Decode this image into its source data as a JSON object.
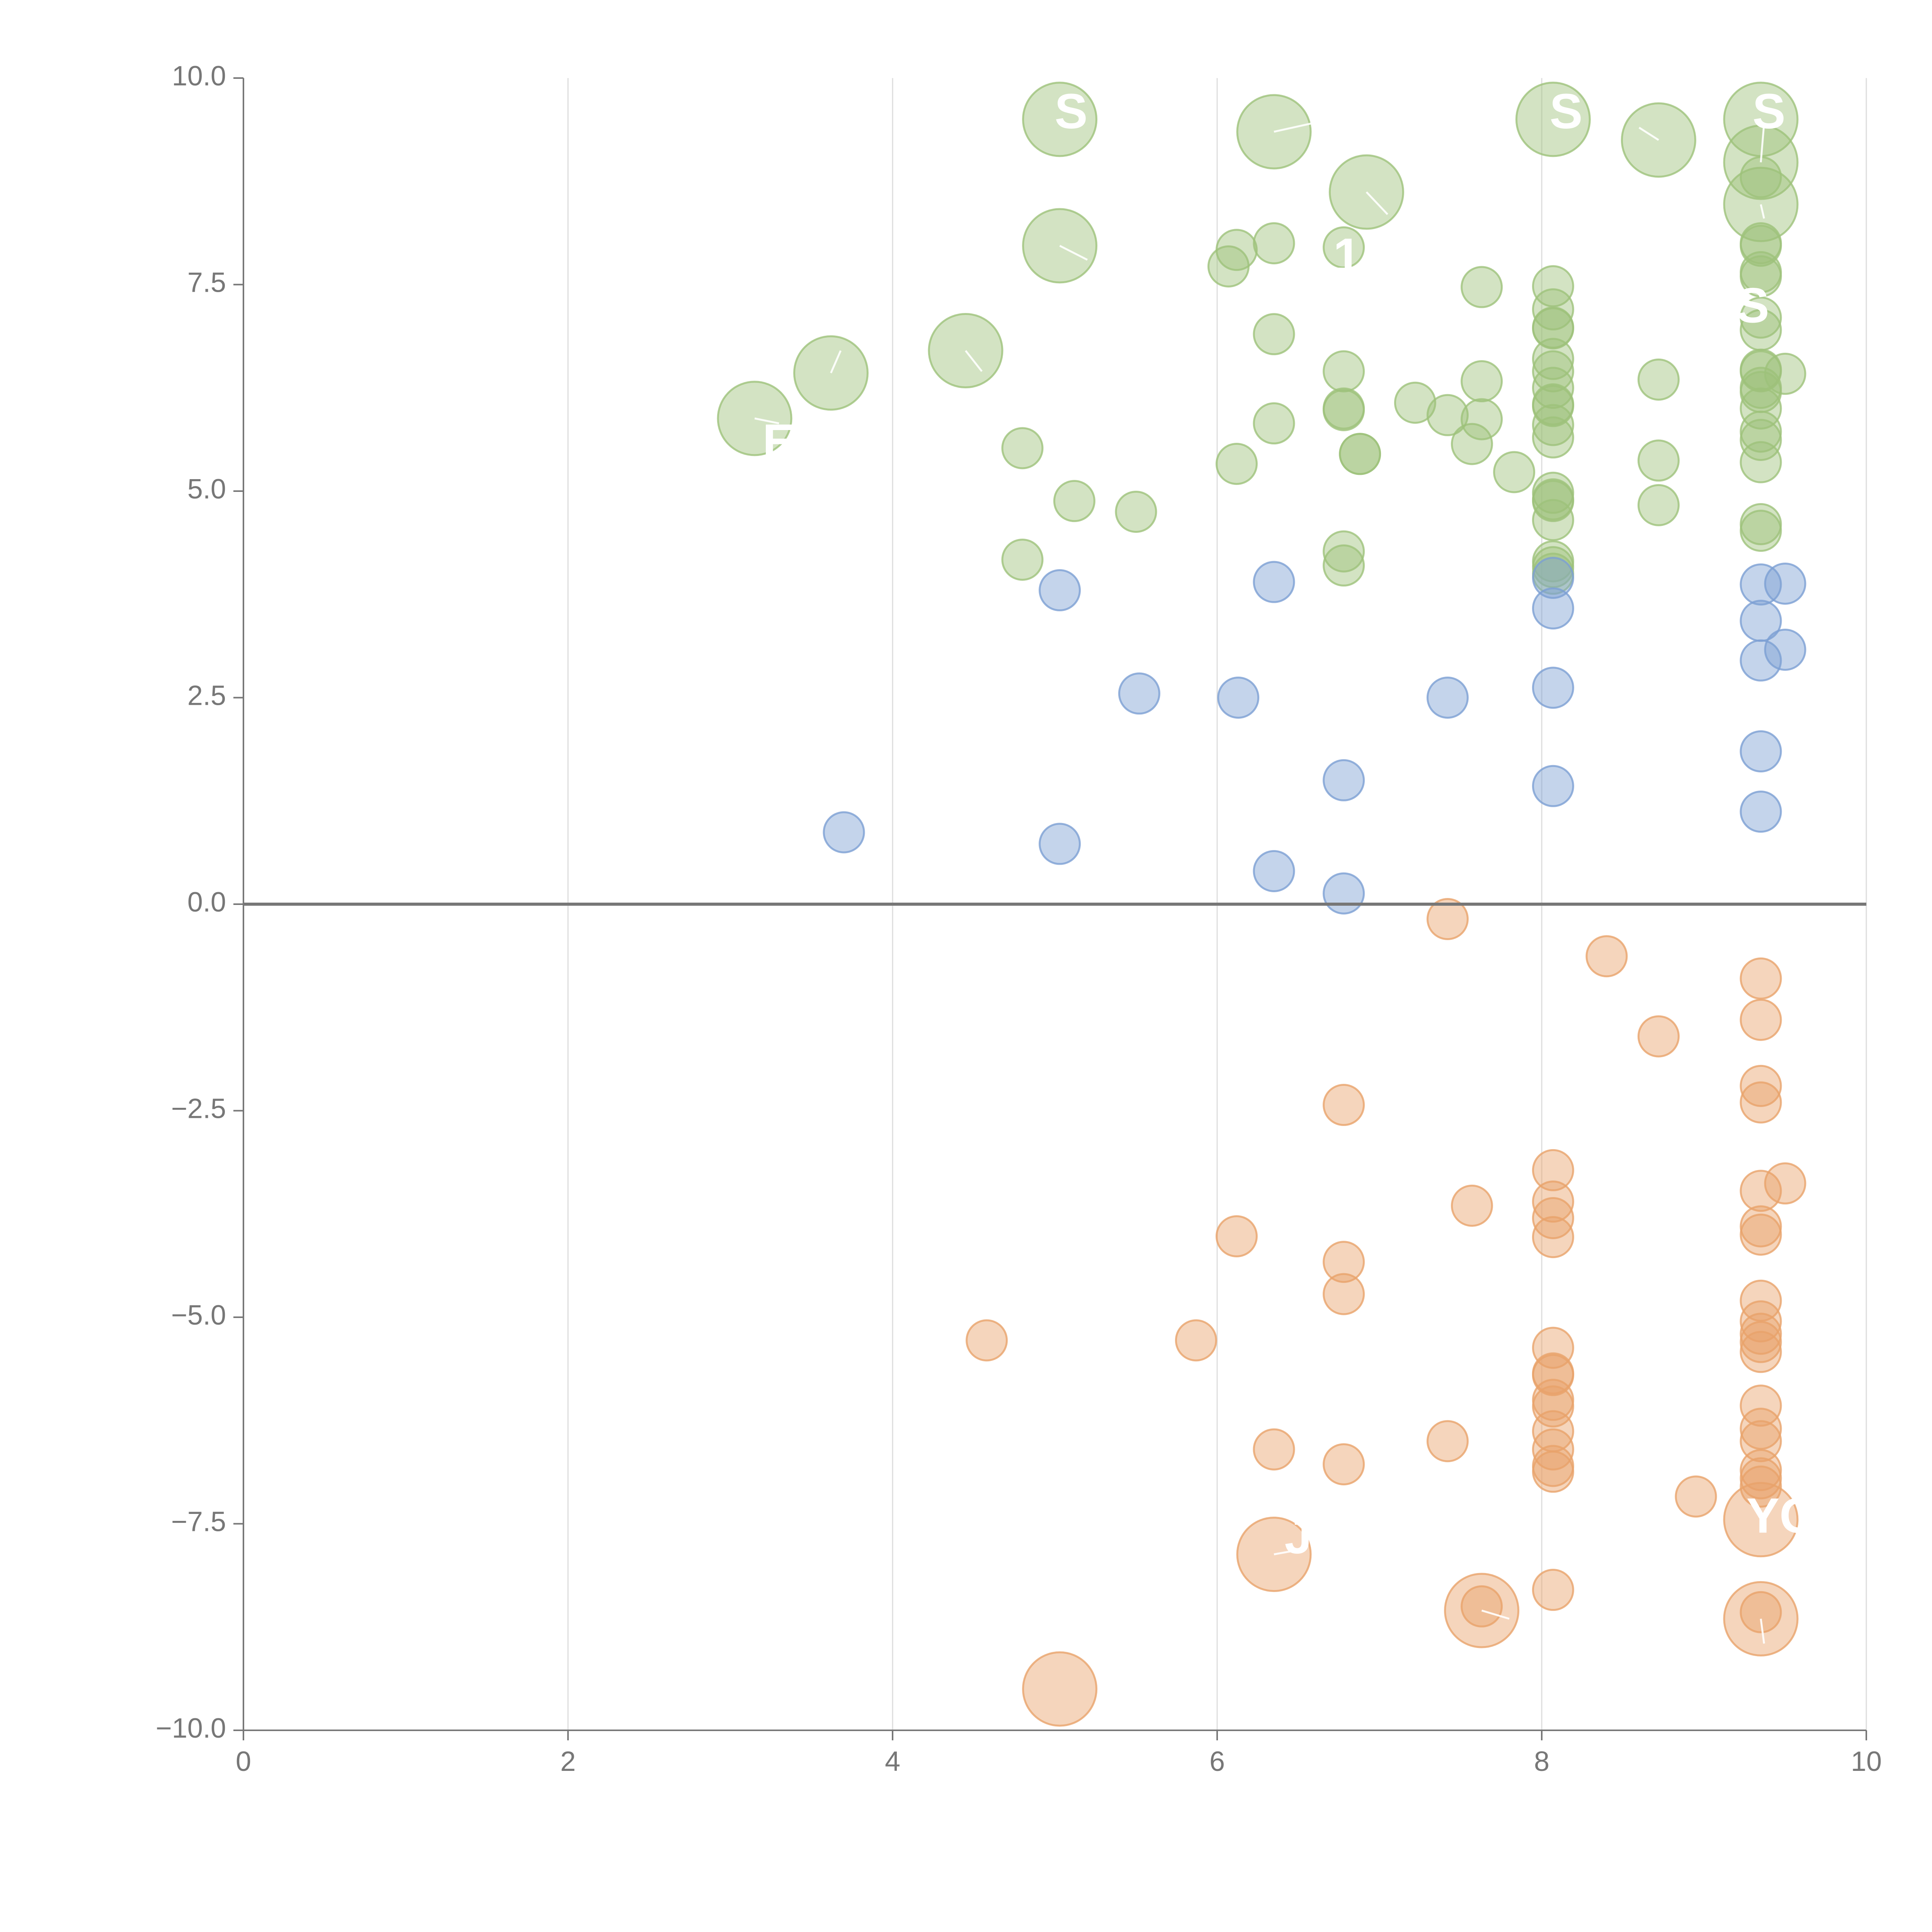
{
  "chart_data": {
    "type": "scatter",
    "title": "",
    "xlabel": "",
    "ylabel": "",
    "xlim": [
      0,
      10
    ],
    "ylim": [
      -10,
      10
    ],
    "x_ticks": [
      "0",
      "2",
      "4",
      "6",
      "8",
      "10"
    ],
    "y_ticks": [
      "10.0",
      "7.5",
      "5.0",
      "2.5",
      "0.0",
      "−2.5",
      "−5.0",
      "−7.5",
      "−10.0"
    ],
    "colors": {
      "green": "#9dc27a",
      "blue": "#7c9fd3",
      "orange": "#e8a26a"
    },
    "series": [
      {
        "name": "green",
        "points": [
          [
            3.15,
            5.88,
            2
          ],
          [
            3.62,
            6.43,
            2
          ],
          [
            4.45,
            6.7,
            2
          ],
          [
            5.03,
            9.5,
            2
          ],
          [
            5.03,
            7.97,
            2
          ],
          [
            6.35,
            9.35,
            2
          ],
          [
            6.92,
            8.62,
            2
          ],
          [
            8.07,
            9.5,
            2
          ],
          [
            8.72,
            9.25,
            2
          ],
          [
            9.35,
            9.5,
            2
          ],
          [
            9.35,
            8.98,
            2
          ],
          [
            9.35,
            8.47,
            2
          ],
          [
            4.8,
            5.52,
            1
          ],
          [
            4.8,
            4.17,
            1
          ],
          [
            5.12,
            4.88,
            1
          ],
          [
            5.5,
            4.75,
            1
          ],
          [
            6.07,
            7.72,
            1
          ],
          [
            6.12,
            7.92,
            1
          ],
          [
            6.12,
            5.33,
            1
          ],
          [
            6.35,
            8.0,
            1
          ],
          [
            6.35,
            6.9,
            1
          ],
          [
            6.35,
            5.82,
            1
          ],
          [
            6.78,
            7.95,
            1
          ],
          [
            6.78,
            6.45,
            1
          ],
          [
            6.78,
            6.0,
            1
          ],
          [
            6.78,
            5.98,
            1
          ],
          [
            6.78,
            4.27,
            1
          ],
          [
            6.78,
            4.1,
            1
          ],
          [
            6.88,
            5.45,
            1
          ],
          [
            6.88,
            5.45,
            1
          ],
          [
            7.22,
            6.07,
            1
          ],
          [
            7.42,
            5.92,
            1
          ],
          [
            7.57,
            5.57,
            1
          ],
          [
            7.63,
            6.33,
            1
          ],
          [
            7.63,
            5.87,
            1
          ],
          [
            7.63,
            7.47,
            1
          ],
          [
            7.83,
            5.23,
            1
          ],
          [
            8.07,
            7.48,
            1
          ],
          [
            8.07,
            7.2,
            1
          ],
          [
            8.07,
            6.98,
            1
          ],
          [
            8.07,
            6.97,
            1
          ],
          [
            8.07,
            6.6,
            1
          ],
          [
            8.07,
            6.45,
            1
          ],
          [
            8.07,
            6.25,
            1
          ],
          [
            8.07,
            6.05,
            1
          ],
          [
            8.07,
            6.03,
            1
          ],
          [
            8.07,
            5.8,
            1
          ],
          [
            8.07,
            5.65,
            1
          ],
          [
            8.07,
            4.98,
            1
          ],
          [
            8.07,
            4.9,
            1
          ],
          [
            8.07,
            4.88,
            1
          ],
          [
            8.07,
            4.65,
            1
          ],
          [
            8.07,
            4.15,
            1
          ],
          [
            8.07,
            4.08,
            1
          ],
          [
            8.07,
            4.0,
            1
          ],
          [
            8.72,
            6.35,
            1
          ],
          [
            8.72,
            5.37,
            1
          ],
          [
            8.72,
            4.83,
            1
          ],
          [
            9.35,
            8.8,
            1
          ],
          [
            9.35,
            8.0,
            1
          ],
          [
            9.35,
            7.97,
            1
          ],
          [
            9.35,
            7.65,
            1
          ],
          [
            9.35,
            7.6,
            1
          ],
          [
            9.35,
            7.1,
            1
          ],
          [
            9.35,
            6.95,
            1
          ],
          [
            9.35,
            6.47,
            1
          ],
          [
            9.35,
            6.45,
            1
          ],
          [
            9.35,
            6.25,
            1
          ],
          [
            9.35,
            6.2,
            1
          ],
          [
            9.35,
            6.0,
            1
          ],
          [
            9.35,
            5.72,
            1
          ],
          [
            9.35,
            5.62,
            1
          ],
          [
            9.35,
            5.35,
            1
          ],
          [
            9.35,
            4.6,
            1
          ],
          [
            9.35,
            4.52,
            1
          ],
          [
            9.5,
            6.42,
            1
          ]
        ]
      },
      {
        "name": "blue",
        "points": [
          [
            3.7,
            0.87,
            1
          ],
          [
            5.03,
            3.8,
            1
          ],
          [
            5.03,
            0.73,
            1
          ],
          [
            5.52,
            2.55,
            1
          ],
          [
            6.13,
            2.5,
            1
          ],
          [
            6.35,
            3.9,
            1
          ],
          [
            6.35,
            0.4,
            1
          ],
          [
            6.78,
            1.5,
            1
          ],
          [
            6.78,
            0.13,
            1
          ],
          [
            7.42,
            2.5,
            1
          ],
          [
            8.07,
            3.95,
            1
          ],
          [
            8.07,
            3.58,
            1
          ],
          [
            8.07,
            2.62,
            1
          ],
          [
            8.07,
            1.43,
            1
          ],
          [
            9.35,
            3.87,
            1
          ],
          [
            9.35,
            3.43,
            1
          ],
          [
            9.35,
            2.95,
            1
          ],
          [
            9.35,
            1.85,
            1
          ],
          [
            9.35,
            1.12,
            1
          ],
          [
            9.5,
            3.88,
            1
          ],
          [
            9.5,
            3.08,
            1
          ]
        ]
      },
      {
        "name": "orange",
        "points": [
          [
            7.42,
            -0.18,
            1
          ],
          [
            8.4,
            -0.63,
            1
          ],
          [
            8.72,
            -1.6,
            1
          ],
          [
            9.35,
            -0.9,
            1
          ],
          [
            9.35,
            -1.4,
            1
          ],
          [
            9.35,
            -2.2,
            1
          ],
          [
            9.35,
            -2.4,
            1
          ],
          [
            6.78,
            -2.43,
            1
          ],
          [
            8.07,
            -3.22,
            1
          ],
          [
            8.07,
            -3.6,
            1
          ],
          [
            8.07,
            -3.8,
            1
          ],
          [
            8.07,
            -4.03,
            1
          ],
          [
            7.57,
            -3.65,
            1
          ],
          [
            6.12,
            -4.02,
            1
          ],
          [
            6.78,
            -4.33,
            1
          ],
          [
            6.78,
            -4.72,
            1
          ],
          [
            9.35,
            -3.47,
            1
          ],
          [
            9.35,
            -3.9,
            1
          ],
          [
            9.35,
            -4.0,
            1
          ],
          [
            9.5,
            -3.38,
            1
          ],
          [
            4.58,
            -5.28,
            1
          ],
          [
            5.87,
            -5.28,
            1
          ],
          [
            9.35,
            -4.8,
            1
          ],
          [
            9.35,
            -5.05,
            1
          ],
          [
            9.35,
            -5.2,
            1
          ],
          [
            9.35,
            -5.3,
            1
          ],
          [
            9.35,
            -5.42,
            1
          ],
          [
            8.07,
            -5.37,
            1
          ],
          [
            8.07,
            -5.68,
            1
          ],
          [
            8.07,
            -5.7,
            1
          ],
          [
            8.07,
            -6.0,
            1
          ],
          [
            8.07,
            -6.08,
            1
          ],
          [
            8.07,
            -6.38,
            1
          ],
          [
            8.07,
            -6.6,
            1
          ],
          [
            8.07,
            -6.8,
            1
          ],
          [
            8.07,
            -6.87,
            1
          ],
          [
            6.35,
            -6.6,
            1
          ],
          [
            6.78,
            -6.78,
            1
          ],
          [
            7.42,
            -6.5,
            1
          ],
          [
            9.35,
            -6.07,
            1
          ],
          [
            9.35,
            -6.35,
            1
          ],
          [
            9.35,
            -6.5,
            1
          ],
          [
            9.35,
            -6.85,
            1
          ],
          [
            9.35,
            -6.95,
            1
          ],
          [
            9.35,
            -7.05,
            1
          ],
          [
            8.95,
            -7.17,
            1
          ],
          [
            8.07,
            -8.3,
            1
          ],
          [
            7.63,
            -8.5,
            1
          ],
          [
            9.35,
            -8.57,
            1
          ],
          [
            9.35,
            -7.45,
            2
          ],
          [
            6.35,
            -7.87,
            2
          ],
          [
            7.63,
            -8.55,
            2
          ],
          [
            9.35,
            -8.65,
            2
          ],
          [
            5.03,
            -9.5,
            2
          ]
        ]
      }
    ],
    "labels": [
      {
        "text": "S",
        "x": 5.1,
        "y": 9.55
      },
      {
        "text": "S",
        "x": 8.15,
        "y": 9.55
      },
      {
        "text": "S",
        "x": 9.4,
        "y": 9.55
      },
      {
        "text": "1",
        "x": 6.8,
        "y": 7.8
      },
      {
        "text": "S",
        "x": 9.3,
        "y": 7.2
      },
      {
        "text": "E",
        "x": 3.3,
        "y": 5.55
      },
      {
        "text": "YGO",
        "x": 9.6,
        "y": -7.45
      },
      {
        "text": "J",
        "x": 6.5,
        "y": -7.7
      }
    ],
    "label_lines": [
      {
        "from": [
          6.35,
          9.35
        ],
        "to": [
          6.58,
          9.45
        ]
      },
      {
        "from": [
          6.92,
          8.62
        ],
        "to": [
          7.05,
          8.35
        ]
      },
      {
        "from": [
          5.03,
          7.97
        ],
        "to": [
          5.2,
          7.8
        ]
      },
      {
        "from": [
          3.62,
          6.43
        ],
        "to": [
          3.68,
          6.7
        ]
      },
      {
        "from": [
          4.45,
          6.7
        ],
        "to": [
          4.55,
          6.45
        ]
      },
      {
        "from": [
          8.72,
          9.25
        ],
        "to": [
          8.6,
          9.4
        ]
      },
      {
        "from": [
          9.35,
          8.98
        ],
        "to": [
          9.37,
          9.45
        ]
      },
      {
        "from": [
          9.35,
          8.47
        ],
        "to": [
          9.37,
          8.3
        ]
      },
      {
        "from": [
          3.15,
          5.88
        ],
        "to": [
          3.3,
          5.82
        ]
      },
      {
        "from": [
          7.63,
          -8.55
        ],
        "to": [
          7.8,
          -8.65
        ]
      },
      {
        "from": [
          9.35,
          -8.65
        ],
        "to": [
          9.37,
          -8.95
        ]
      },
      {
        "from": [
          6.35,
          -7.87
        ],
        "to": [
          6.55,
          -7.8
        ]
      }
    ]
  }
}
